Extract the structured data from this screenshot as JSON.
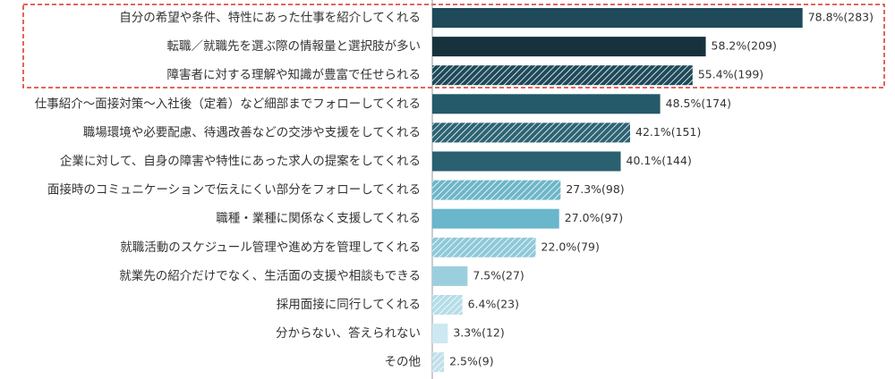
{
  "chart_data": {
    "type": "bar",
    "orientation": "horizontal",
    "categories": [
      "自分の希望や条件、特性にあった仕事を紹介してくれる",
      "転職／就職先を選ぶ際の情報量と選択肢が多い",
      "障害者に対する理解や知識が豊富で任せられる",
      "仕事紹介～面接対策～入社後（定着）など細部までフォローしてくれる",
      "職場環境や必要配慮、待遇改善などの交渉や支援をしてくれる",
      "企業に対して、自身の障害や特性にあった求人の提案をしてくれる",
      "面接時のコミュニケーションで伝えにくい部分をフォローしてくれる",
      "職種・業種に関係なく支援してくれる",
      "就職活動のスケジュール管理や進め方を管理してくれる",
      "就業先の紹介だけでなく、生活面の支援や相談もできる",
      "採用面接に同行してくれる",
      "分からない、答えられない",
      "その他"
    ],
    "values": [
      78.8,
      58.2,
      55.4,
      48.5,
      42.1,
      40.1,
      27.3,
      27.0,
      22.0,
      7.5,
      6.4,
      3.3,
      2.5
    ],
    "value_labels": [
      "78.8%(283)",
      "58.2%(209)",
      "55.4%(199)",
      "48.5%(174)",
      "42.1%(151)",
      "40.1%(144)",
      "27.3%(98)",
      "27.0%(97)",
      "22.0%(79)",
      "7.5%(27)",
      "6.4%(23)",
      "3.3%(12)",
      "2.5%(9)"
    ],
    "colors": [
      "#1e4a5a",
      "#17323d",
      "#1e4a5a",
      "#245a69",
      "#2c6474",
      "#2a6070",
      "#6db6c8",
      "#6ab6ca",
      "#8ec9d8",
      "#9ccfdd",
      "#b5dde8",
      "#cde8f0",
      "#c0e0ea"
    ],
    "hatched": [
      false,
      false,
      true,
      false,
      true,
      false,
      true,
      false,
      true,
      false,
      true,
      false,
      true
    ]
  }
}
